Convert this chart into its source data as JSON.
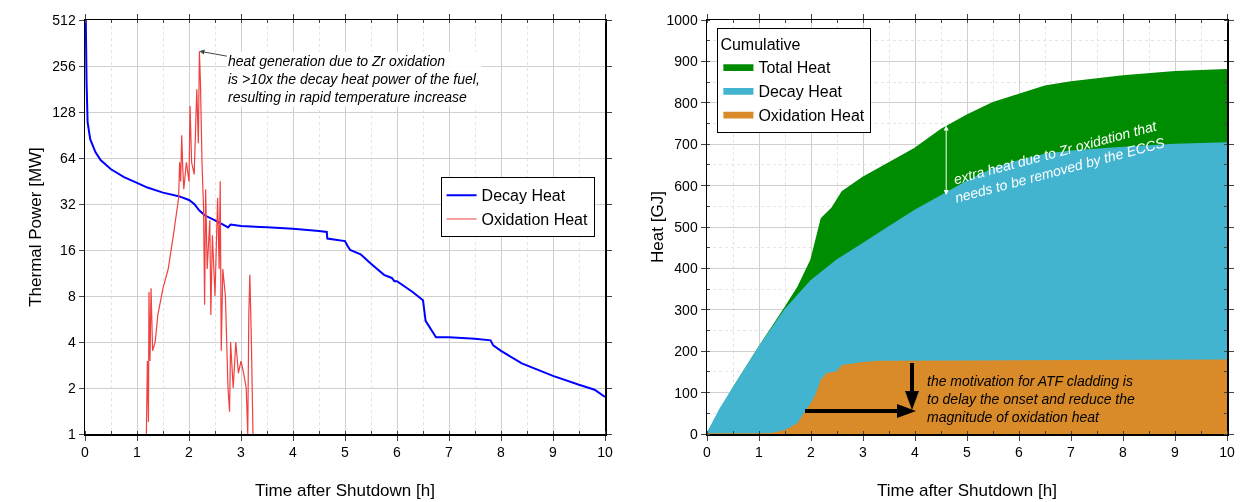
{
  "chart_data": [
    {
      "type": "line",
      "xlabel": "Time after Shutdown [h]",
      "ylabel": "Thermal Power [MW]",
      "log": "y",
      "grid": true,
      "legend": "right",
      "line_style": "solid",
      "marker": "none",
      "xlim": [
        0,
        10
      ],
      "xticks": [
        0,
        1,
        2,
        3,
        4,
        5,
        6,
        7,
        8,
        9,
        10
      ],
      "ylim": [
        1,
        512
      ],
      "yticks": [
        1,
        2,
        4,
        8,
        16,
        32,
        64,
        128,
        256,
        512
      ],
      "annotations": [
        {
          "text": "heat generation due to Zr oxidation\nis >10x the decay heat power of the fuel,\nresulting in rapid temperature increase",
          "x": 2.2,
          "y": 320
        }
      ],
      "series": [
        {
          "name": "Decay Heat",
          "color": "#0000ff",
          "x": [
            0.015,
            0.03,
            0.05,
            0.1,
            0.2,
            0.3,
            0.5,
            0.75,
            1,
            1.2,
            1.5,
            1.8,
            2,
            2.1,
            2.2,
            2.3,
            2.5,
            2.7,
            2.75,
            2.8,
            3,
            3.5,
            4,
            4.5,
            4.65,
            4.66,
            5,
            5.05,
            5.1,
            5.3,
            5.5,
            5.75,
            5.9,
            5.95,
            6,
            6.3,
            6.5,
            6.55,
            6.75,
            7,
            7.5,
            7.8,
            7.85,
            8,
            8.4,
            9,
            9.5,
            9.8,
            10
          ],
          "values": [
            512,
            200,
            110,
            85,
            70,
            62,
            54,
            48,
            44,
            41,
            38,
            36,
            34,
            32,
            29,
            27,
            25,
            23,
            22.5,
            23.5,
            23,
            22.5,
            22,
            21.3,
            21,
            19,
            18.3,
            17,
            16,
            15,
            13,
            11,
            10.5,
            10,
            10,
            8.5,
            7.5,
            5.5,
            4.3,
            4.3,
            4.2,
            4.1,
            3.8,
            3.5,
            2.9,
            2.4,
            2.1,
            1.95,
            1.75
          ]
        },
        {
          "name": "Oxidation Heat",
          "color": "#f04040",
          "x": [
            1.18,
            1.2,
            1.22,
            1.23,
            1.25,
            1.27,
            1.3,
            1.35,
            1.4,
            1.5,
            1.6,
            1.7,
            1.8,
            1.82,
            1.84,
            1.86,
            1.88,
            1.9,
            1.95,
            2,
            2.02,
            2.05,
            2.1,
            2.15,
            2.18,
            2.2,
            2.22,
            2.25,
            2.28,
            2.3,
            2.32,
            2.35,
            2.4,
            2.42,
            2.45,
            2.5,
            2.55,
            2.58,
            2.6,
            2.62,
            2.65,
            2.7,
            2.75,
            2.78,
            2.8,
            2.85,
            2.9,
            2.95,
            3,
            3.05,
            3.1,
            3.13,
            3.15,
            3.17,
            3.2,
            3.23
          ],
          "values": [
            1,
            3,
            1.2,
            8.5,
            3,
            9,
            3.5,
            4,
            6,
            9,
            12,
            20,
            35,
            60,
            45,
            90,
            55,
            40,
            60,
            45,
            140,
            60,
            50,
            180,
            80,
            320,
            200,
            60,
            30,
            7,
            40,
            12,
            25,
            6,
            20,
            8,
            35,
            12,
            45,
            3.5,
            12,
            8,
            2,
            1.4,
            4,
            2,
            4,
            2.5,
            3,
            2.5,
            2,
            1,
            6,
            11,
            4,
            1
          ]
        }
      ]
    },
    {
      "type": "area",
      "xlabel": "Time after Shutdown [h]",
      "ylabel": "Heat [GJ]",
      "grid": true,
      "legend": "top left",
      "legend_title": "Cumulative",
      "xlim": [
        0,
        10
      ],
      "xticks": [
        0,
        1,
        2,
        3,
        4,
        5,
        6,
        7,
        8,
        9,
        10
      ],
      "ylim": [
        0,
        1000
      ],
      "yticks": [
        0,
        100,
        200,
        300,
        400,
        500,
        600,
        700,
        800,
        900,
        1000
      ],
      "annotations": [
        {
          "text": "extra heat due to Zr oxidation that\nneeds to be removed by the ECCS",
          "x": 4.6,
          "y": 745
        },
        "the motivation for ATF cladding is\nto delay the onset and reduce the\nmagnitude of oxidation heat"
      ],
      "series": [
        {
          "name": "Total Heat",
          "color": "#008c00",
          "x": [
            0,
            0.5,
            1,
            1.5,
            1.75,
            2,
            2.1,
            2.2,
            2.4,
            2.6,
            3,
            3.5,
            4,
            4.5,
            5,
            5.5,
            6,
            6.5,
            7,
            8,
            9,
            10
          ],
          "values": [
            0,
            110,
            210,
            305,
            355,
            420,
            470,
            520,
            545,
            585,
            620,
            655,
            690,
            735,
            770,
            800,
            820,
            840,
            850,
            865,
            875,
            880
          ]
        },
        {
          "name": "Decay Heat",
          "color": "#42b4cf",
          "x": [
            0,
            0.25,
            0.5,
            1,
            1.5,
            2,
            2.5,
            3,
            3.5,
            4,
            4.5,
            5,
            5.5,
            6,
            6.5,
            7,
            8,
            9,
            10
          ],
          "values": [
            0,
            60,
            110,
            210,
            300,
            370,
            420,
            460,
            500,
            540,
            575,
            610,
            640,
            660,
            675,
            683,
            692,
            699,
            703
          ]
        },
        {
          "name": "Oxidation Heat",
          "color": "#d98b2a",
          "x": [
            0,
            1,
            1.25,
            1.5,
            1.75,
            1.9,
            2,
            2.1,
            2.2,
            2.3,
            2.5,
            2.6,
            3,
            3.3,
            5,
            10
          ],
          "values": [
            0,
            0,
            1,
            8,
            25,
            55,
            72,
            95,
            130,
            145,
            150,
            165,
            172,
            175,
            176,
            178
          ]
        }
      ]
    }
  ]
}
